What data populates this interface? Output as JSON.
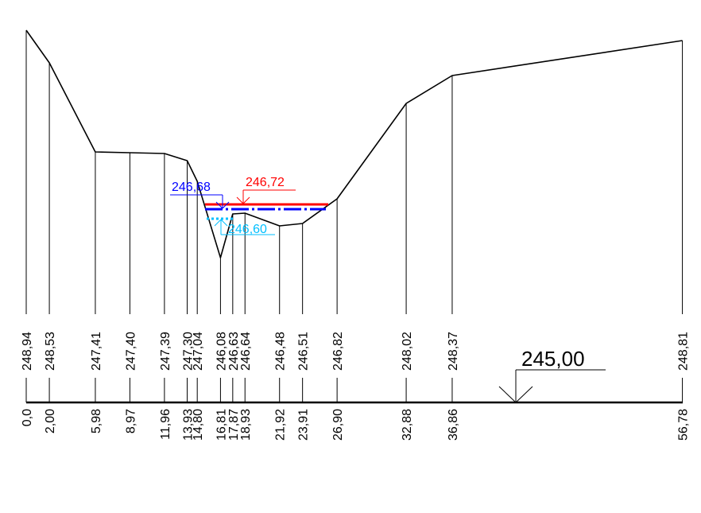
{
  "datum": {
    "label": "245,00"
  },
  "water_levels": [
    {
      "label": "246,72",
      "color": "#ff0000"
    },
    {
      "label": "246,68",
      "color": "#0000ff"
    },
    {
      "label": "246,60",
      "color": "#00bfff"
    }
  ],
  "profile_points": [
    {
      "station": "0,0",
      "elevation": "248,94"
    },
    {
      "station": "2,00",
      "elevation": "248,53"
    },
    {
      "station": "5,98",
      "elevation": "247,41"
    },
    {
      "station": "8,97",
      "elevation": "247,40"
    },
    {
      "station": "11,96",
      "elevation": "247,39"
    },
    {
      "station": "13,93",
      "elevation": "247,30"
    },
    {
      "station": "14,80",
      "elevation": "247,04"
    },
    {
      "station": "16,81",
      "elevation": "246,08"
    },
    {
      "station": "17,87",
      "elevation": "246,63"
    },
    {
      "station": "18,93",
      "elevation": "246,64"
    },
    {
      "station": "21,92",
      "elevation": "246,48"
    },
    {
      "station": "23,91",
      "elevation": "246,51"
    },
    {
      "station": "26,90",
      "elevation": "246,82"
    },
    {
      "station": "32,88",
      "elevation": "248,02"
    },
    {
      "station": "36,86",
      "elevation": "248,37"
    },
    {
      "station": "56,78",
      "elevation": "248,81"
    }
  ],
  "colors": {
    "line": "#000000",
    "water_red": "#ff0000",
    "water_blue": "#0000ff",
    "water_cyan": "#00bfff"
  }
}
